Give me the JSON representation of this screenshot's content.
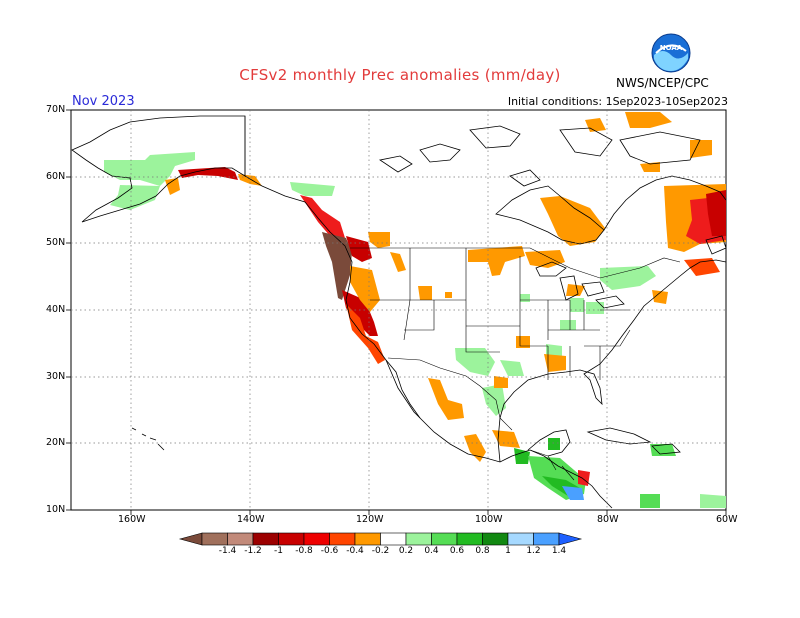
{
  "title": "CFSv2 monthly Prec anomalies (mm/day)",
  "month": "Nov 2023",
  "initial_conditions": "Initial conditions:  1Sep2023-10Sep2023",
  "agency": "NWS/NCEP/CPC",
  "logo_icon": "noaa-logo-icon",
  "axes": {
    "lat_labels": [
      "70N",
      "60N",
      "50N",
      "40N",
      "30N",
      "20N",
      "10N"
    ],
    "lon_labels": [
      "160W",
      "140W",
      "120W",
      "100W",
      "80W",
      "60W"
    ]
  },
  "colorbar": {
    "labels": [
      "-1.4",
      "-1.2",
      "-1",
      "-0.8",
      "-0.6",
      "-0.4",
      "-0.2",
      "0.2",
      "0.4",
      "0.6",
      "0.8",
      "1",
      "1.2",
      "1.4"
    ],
    "colors": [
      "#7a4a3a",
      "#a0705c",
      "#c28a7a",
      "#9c0000",
      "#c80000",
      "#ee0000",
      "#ff4500",
      "#ff9900",
      "#ffffff",
      "#9cf39c",
      "#55dd55",
      "#22bb22",
      "#118811",
      "#a6d9ff",
      "#4aa0ff",
      "#1e60ff"
    ]
  },
  "anomaly_colors": {
    "dark_brown": "#7a4a3a",
    "dark_red": "#b00000",
    "red": "#ee1c1c",
    "orange_red": "#ff4500",
    "orange": "#f5a000",
    "light_green": "#9cf39c",
    "green": "#55dd55",
    "mid_green": "#22bb22",
    "blue": "#4aa0ff"
  }
}
